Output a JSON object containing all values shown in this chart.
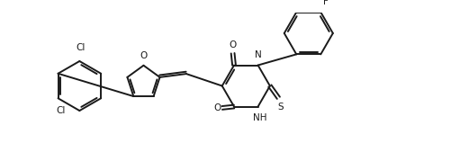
{
  "background_color": "#ffffff",
  "line_color": "#1a1a1a",
  "line_width": 1.4,
  "font_size": 7.5,
  "figsize": [
    5.21,
    1.69
  ],
  "dpi": 100,
  "xlim": [
    0,
    10.5
  ],
  "ylim": [
    0,
    3.24
  ]
}
